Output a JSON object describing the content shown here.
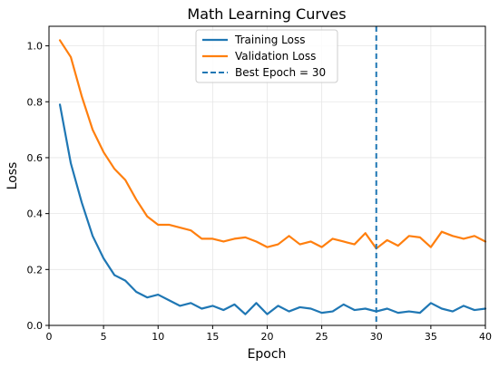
{
  "chart_data": {
    "type": "line",
    "title": "Math Learning Curves",
    "xlabel": "Epoch",
    "ylabel": "Loss",
    "xlim": [
      0,
      40
    ],
    "ylim": [
      0,
      1.07
    ],
    "xticks": [
      0,
      5,
      10,
      15,
      20,
      25,
      30,
      35,
      40
    ],
    "yticks": [
      0.0,
      0.2,
      0.4,
      0.6,
      0.8,
      1.0
    ],
    "xtick_labels": [
      "0",
      "5",
      "10",
      "15",
      "20",
      "25",
      "30",
      "35",
      "40"
    ],
    "ytick_labels": [
      "0.0",
      "0.2",
      "0.4",
      "0.6",
      "0.8",
      "1.0"
    ],
    "grid": true,
    "legend_position": "top-center",
    "x": [
      1,
      2,
      3,
      4,
      5,
      6,
      7,
      8,
      9,
      10,
      11,
      12,
      13,
      14,
      15,
      16,
      17,
      18,
      19,
      20,
      21,
      22,
      23,
      24,
      25,
      26,
      27,
      28,
      29,
      30,
      31,
      32,
      33,
      34,
      35,
      36,
      37,
      38,
      39,
      40
    ],
    "series": [
      {
        "name": "Training Loss",
        "color": "#1f77b4",
        "style": "solid",
        "values": [
          0.79,
          0.58,
          0.44,
          0.32,
          0.24,
          0.18,
          0.16,
          0.12,
          0.1,
          0.11,
          0.09,
          0.07,
          0.08,
          0.06,
          0.07,
          0.055,
          0.075,
          0.04,
          0.08,
          0.04,
          0.07,
          0.05,
          0.065,
          0.06,
          0.045,
          0.05,
          0.075,
          0.055,
          0.06,
          0.05,
          0.06,
          0.045,
          0.05,
          0.045,
          0.08,
          0.06,
          0.05,
          0.07,
          0.055,
          0.06
        ]
      },
      {
        "name": "Validation Loss",
        "color": "#ff7f0e",
        "style": "solid",
        "values": [
          1.02,
          0.96,
          0.82,
          0.7,
          0.62,
          0.56,
          0.52,
          0.45,
          0.39,
          0.36,
          0.36,
          0.35,
          0.34,
          0.31,
          0.31,
          0.3,
          0.31,
          0.315,
          0.3,
          0.28,
          0.29,
          0.32,
          0.29,
          0.3,
          0.28,
          0.31,
          0.3,
          0.29,
          0.33,
          0.275,
          0.305,
          0.285,
          0.32,
          0.315,
          0.28,
          0.335,
          0.32,
          0.31,
          0.32,
          0.3
        ]
      }
    ],
    "vline": {
      "name": "Best Epoch = 30",
      "x": 30,
      "color": "#1f77b4",
      "style": "dashed"
    }
  }
}
